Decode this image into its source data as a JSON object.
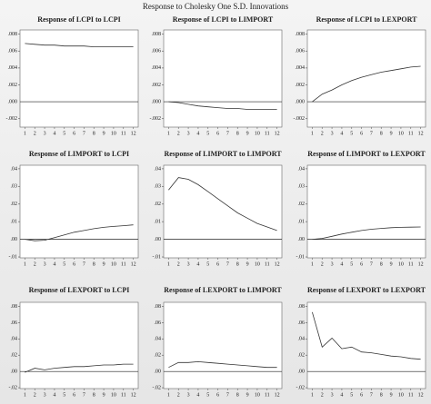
{
  "title": "Response to Cholesky One S.D. Innovations",
  "chart_data": [
    {
      "type": "line",
      "title": "Response of LCPI to LCPI",
      "x": [
        1,
        2,
        3,
        4,
        5,
        6,
        7,
        8,
        9,
        10,
        11,
        12
      ],
      "xlim": [
        0.5,
        12.5
      ],
      "xticks": [
        1,
        2,
        3,
        4,
        5,
        6,
        7,
        8,
        9,
        10,
        11,
        12
      ],
      "ylim": [
        -0.003,
        0.0085
      ],
      "yticks": [
        {
          "value": -0.002,
          "label": "-.002"
        },
        {
          "value": 0,
          "label": ".000"
        },
        {
          "value": 0.002,
          "label": ".002"
        },
        {
          "value": 0.004,
          "label": ".004"
        },
        {
          "value": 0.006,
          "label": ".006"
        },
        {
          "value": 0.008,
          "label": ".008"
        }
      ],
      "series": [
        {
          "color": "#333333",
          "values": [
            0.0069,
            0.0068,
            0.0067,
            0.0067,
            0.0066,
            0.0066,
            0.0066,
            0.0065,
            0.0065,
            0.0065,
            0.0065,
            0.0065
          ]
        }
      ]
    },
    {
      "type": "line",
      "title": "Response of LCPI to LIMPORT",
      "x": [
        1,
        2,
        3,
        4,
        5,
        6,
        7,
        8,
        9,
        10,
        11,
        12
      ],
      "xlim": [
        0.5,
        12.5
      ],
      "xticks": [
        1,
        2,
        3,
        4,
        5,
        6,
        7,
        8,
        9,
        10,
        11,
        12
      ],
      "ylim": [
        -0.003,
        0.0085
      ],
      "yticks": [
        {
          "value": -0.002,
          "label": "-.002"
        },
        {
          "value": 0,
          "label": ".000"
        },
        {
          "value": 0.002,
          "label": ".002"
        },
        {
          "value": 0.004,
          "label": ".004"
        },
        {
          "value": 0.006,
          "label": ".006"
        },
        {
          "value": 0.008,
          "label": ".008"
        }
      ],
      "series": [
        {
          "color": "#333333",
          "values": [
            0,
            -0.0001,
            -0.0003,
            -0.0005,
            -0.0006,
            -0.0007,
            -0.0008,
            -0.0008,
            -0.0009,
            -0.0009,
            -0.0009,
            -0.0009
          ]
        }
      ]
    },
    {
      "type": "line",
      "title": "Response of LCPI to LEXPORT",
      "x": [
        1,
        2,
        3,
        4,
        5,
        6,
        7,
        8,
        9,
        10,
        11,
        12
      ],
      "xlim": [
        0.5,
        12.5
      ],
      "xticks": [
        1,
        2,
        3,
        4,
        5,
        6,
        7,
        8,
        9,
        10,
        11,
        12
      ],
      "ylim": [
        -0.003,
        0.0085
      ],
      "yticks": [
        {
          "value": -0.002,
          "label": "-.002"
        },
        {
          "value": 0,
          "label": ".000"
        },
        {
          "value": 0.002,
          "label": ".002"
        },
        {
          "value": 0.004,
          "label": ".004"
        },
        {
          "value": 0.006,
          "label": ".006"
        },
        {
          "value": 0.008,
          "label": ".008"
        }
      ],
      "series": [
        {
          "color": "#333333",
          "values": [
            0,
            0.0009,
            0.0014,
            0.002,
            0.0025,
            0.0029,
            0.0032,
            0.0035,
            0.0037,
            0.0039,
            0.0041,
            0.0042
          ]
        }
      ]
    },
    {
      "type": "line",
      "title": "Response of LIMPORT to LCPI",
      "x": [
        1,
        2,
        3,
        4,
        5,
        6,
        7,
        8,
        9,
        10,
        11,
        12
      ],
      "xlim": [
        0.5,
        12.5
      ],
      "xticks": [
        1,
        2,
        3,
        4,
        5,
        6,
        7,
        8,
        9,
        10,
        11,
        12
      ],
      "ylim": [
        -0.0105,
        0.042
      ],
      "yticks": [
        {
          "value": -0.01,
          "label": "-.01"
        },
        {
          "value": 0,
          "label": ".00"
        },
        {
          "value": 0.01,
          "label": ".01"
        },
        {
          "value": 0.02,
          "label": ".02"
        },
        {
          "value": 0.03,
          "label": ".03"
        },
        {
          "value": 0.04,
          "label": ".04"
        }
      ],
      "series": [
        {
          "color": "#333333",
          "values": [
            0,
            -0.0008,
            -0.0005,
            0.001,
            0.0025,
            0.004,
            0.005,
            0.006,
            0.0068,
            0.0073,
            0.0077,
            0.0082
          ]
        }
      ]
    },
    {
      "type": "line",
      "title": "Response of LIMPORT to LIMPORT",
      "x": [
        1,
        2,
        3,
        4,
        5,
        6,
        7,
        8,
        9,
        10,
        11,
        12
      ],
      "xlim": [
        0.5,
        12.5
      ],
      "xticks": [
        1,
        2,
        3,
        4,
        5,
        6,
        7,
        8,
        9,
        10,
        11,
        12
      ],
      "ylim": [
        -0.0105,
        0.042
      ],
      "yticks": [
        {
          "value": -0.01,
          "label": "-.01"
        },
        {
          "value": 0,
          "label": ".00"
        },
        {
          "value": 0.01,
          "label": ".01"
        },
        {
          "value": 0.02,
          "label": ".02"
        },
        {
          "value": 0.03,
          "label": ".03"
        },
        {
          "value": 0.04,
          "label": ".04"
        }
      ],
      "series": [
        {
          "color": "#333333",
          "values": [
            0.028,
            0.035,
            0.034,
            0.031,
            0.027,
            0.023,
            0.019,
            0.015,
            0.012,
            0.009,
            0.007,
            0.005
          ]
        }
      ]
    },
    {
      "type": "line",
      "title": "Response of LIMPORT to LEXPORT",
      "x": [
        1,
        2,
        3,
        4,
        5,
        6,
        7,
        8,
        9,
        10,
        11,
        12
      ],
      "xlim": [
        0.5,
        12.5
      ],
      "xticks": [
        1,
        2,
        3,
        4,
        5,
        6,
        7,
        8,
        9,
        10,
        11,
        12
      ],
      "ylim": [
        -0.0105,
        0.042
      ],
      "yticks": [
        {
          "value": -0.01,
          "label": "-.01"
        },
        {
          "value": 0,
          "label": ".00"
        },
        {
          "value": 0.01,
          "label": ".01"
        },
        {
          "value": 0.02,
          "label": ".02"
        },
        {
          "value": 0.03,
          "label": ".03"
        },
        {
          "value": 0.04,
          "label": ".04"
        }
      ],
      "series": [
        {
          "color": "#333333",
          "values": [
            0,
            0.0005,
            0.0017,
            0.003,
            0.004,
            0.005,
            0.0057,
            0.0062,
            0.0066,
            0.0068,
            0.0069,
            0.007
          ]
        }
      ]
    },
    {
      "type": "line",
      "title": "Response of LEXPORT to LCPI",
      "x": [
        1,
        2,
        3,
        4,
        5,
        6,
        7,
        8,
        9,
        10,
        11,
        12
      ],
      "xlim": [
        0.5,
        12.5
      ],
      "xticks": [
        1,
        2,
        3,
        4,
        5,
        6,
        7,
        8,
        9,
        10,
        11,
        12
      ],
      "ylim": [
        -0.021,
        0.085
      ],
      "yticks": [
        {
          "value": -0.02,
          "label": "-.02"
        },
        {
          "value": 0,
          "label": ".00"
        },
        {
          "value": 0.02,
          "label": ".02"
        },
        {
          "value": 0.04,
          "label": ".04"
        },
        {
          "value": 0.06,
          "label": ".06"
        },
        {
          "value": 0.08,
          "label": ".08"
        }
      ],
      "series": [
        {
          "color": "#333333",
          "values": [
            -0.001,
            0.004,
            0.002,
            0.004,
            0.005,
            0.006,
            0.006,
            0.007,
            0.008,
            0.008,
            0.009,
            0.009
          ]
        }
      ]
    },
    {
      "type": "line",
      "title": "Response of LEXPORT to LIMPORT",
      "x": [
        1,
        2,
        3,
        4,
        5,
        6,
        7,
        8,
        9,
        10,
        11,
        12
      ],
      "xlim": [
        0.5,
        12.5
      ],
      "xticks": [
        1,
        2,
        3,
        4,
        5,
        6,
        7,
        8,
        9,
        10,
        11,
        12
      ],
      "ylim": [
        -0.021,
        0.085
      ],
      "yticks": [
        {
          "value": -0.02,
          "label": "-.02"
        },
        {
          "value": 0,
          "label": ".00"
        },
        {
          "value": 0.02,
          "label": ".02"
        },
        {
          "value": 0.04,
          "label": ".04"
        },
        {
          "value": 0.06,
          "label": ".06"
        },
        {
          "value": 0.08,
          "label": ".08"
        }
      ],
      "series": [
        {
          "color": "#333333",
          "values": [
            0.005,
            0.011,
            0.011,
            0.012,
            0.011,
            0.01,
            0.009,
            0.008,
            0.007,
            0.006,
            0.005,
            0.005
          ]
        }
      ]
    },
    {
      "type": "line",
      "title": "Response of LEXPORT to LEXPORT",
      "x": [
        1,
        2,
        3,
        4,
        5,
        6,
        7,
        8,
        9,
        10,
        11,
        12
      ],
      "xlim": [
        0.5,
        12.5
      ],
      "xticks": [
        1,
        2,
        3,
        4,
        5,
        6,
        7,
        8,
        9,
        10,
        11,
        12
      ],
      "ylim": [
        -0.021,
        0.085
      ],
      "yticks": [
        {
          "value": -0.02,
          "label": "-.02"
        },
        {
          "value": 0,
          "label": ".00"
        },
        {
          "value": 0.02,
          "label": ".02"
        },
        {
          "value": 0.04,
          "label": ".04"
        },
        {
          "value": 0.06,
          "label": ".06"
        },
        {
          "value": 0.08,
          "label": ".08"
        }
      ],
      "series": [
        {
          "color": "#333333",
          "values": [
            0.073,
            0.03,
            0.041,
            0.028,
            0.03,
            0.024,
            0.023,
            0.021,
            0.019,
            0.018,
            0.016,
            0.015
          ]
        }
      ]
    }
  ]
}
